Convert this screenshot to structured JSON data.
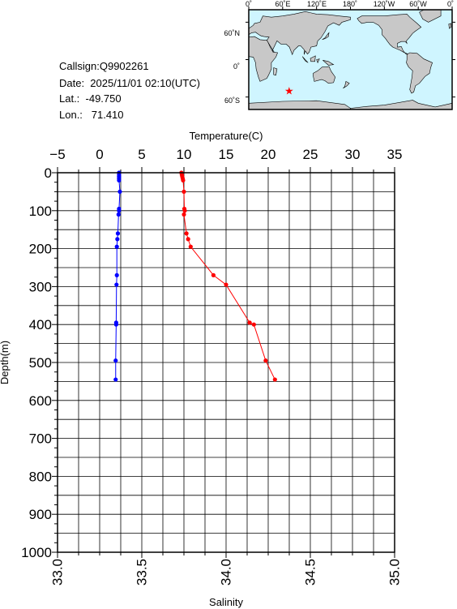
{
  "info": {
    "callsign": "Callsign:Q9902261",
    "date": "Date:  2025/11/01 02:10(UTC)",
    "lat": "Lat.:  -49.750",
    "lon": "Lon.:   71.410"
  },
  "map": {
    "top_ticks": [
      "0˚",
      "60˚E",
      "120˚E",
      "180˚",
      "120˚W",
      "60˚W",
      "0˚"
    ],
    "left_ticks": [
      "60˚N",
      "0˚",
      "60˚S"
    ],
    "station_marker": {
      "lon": 71.41,
      "lat": -49.75,
      "color": "#ff0000"
    },
    "land_color": "#c8c8c8",
    "ocean_color": "#cff5ff"
  },
  "chart_data": {
    "type": "line",
    "xlabel_top": "Temperature(C)",
    "xlabel_bottom": "Salinity",
    "ylabel": "Depth(m)",
    "temperature_axis": {
      "range": [
        -5,
        35
      ],
      "ticks": [
        "−5",
        "0",
        "5",
        "10",
        "15",
        "20",
        "25",
        "30",
        "35"
      ]
    },
    "salinity_axis": {
      "range": [
        33.0,
        35.0
      ],
      "ticks": [
        "33.0",
        "33.5",
        "34.0",
        "34.5",
        "35.0"
      ]
    },
    "depth_axis": {
      "range": [
        0,
        1000
      ],
      "inverted": true,
      "ticks": [
        "0",
        "100",
        "200",
        "300",
        "400",
        "500",
        "600",
        "700",
        "800",
        "900",
        "1000"
      ]
    },
    "grid": true,
    "series": [
      {
        "color": "#0000ff",
        "axis": "salinity",
        "points": [
          [
            33.365,
            0
          ],
          [
            33.365,
            5
          ],
          [
            33.365,
            10
          ],
          [
            33.365,
            15
          ],
          [
            33.365,
            20
          ],
          [
            33.37,
            50
          ],
          [
            33.365,
            95
          ],
          [
            33.365,
            100
          ],
          [
            33.362,
            110
          ],
          [
            33.358,
            160
          ],
          [
            33.355,
            175
          ],
          [
            33.352,
            195
          ],
          [
            33.352,
            270
          ],
          [
            33.35,
            295
          ],
          [
            33.348,
            395
          ],
          [
            33.348,
            400
          ],
          [
            33.345,
            495
          ],
          [
            33.345,
            545
          ]
        ]
      },
      {
        "color": "#ff0000",
        "axis": "temperature",
        "points": [
          [
            9.7,
            0
          ],
          [
            9.75,
            5
          ],
          [
            9.8,
            10
          ],
          [
            9.85,
            15
          ],
          [
            9.9,
            20
          ],
          [
            10.0,
            50
          ],
          [
            10.05,
            95
          ],
          [
            10.1,
            100
          ],
          [
            10.0,
            110
          ],
          [
            10.3,
            160
          ],
          [
            10.5,
            175
          ],
          [
            10.8,
            195
          ],
          [
            13.5,
            270
          ],
          [
            15.0,
            295
          ],
          [
            17.8,
            395
          ],
          [
            18.3,
            400
          ],
          [
            19.7,
            495
          ],
          [
            20.8,
            545
          ]
        ]
      }
    ]
  }
}
